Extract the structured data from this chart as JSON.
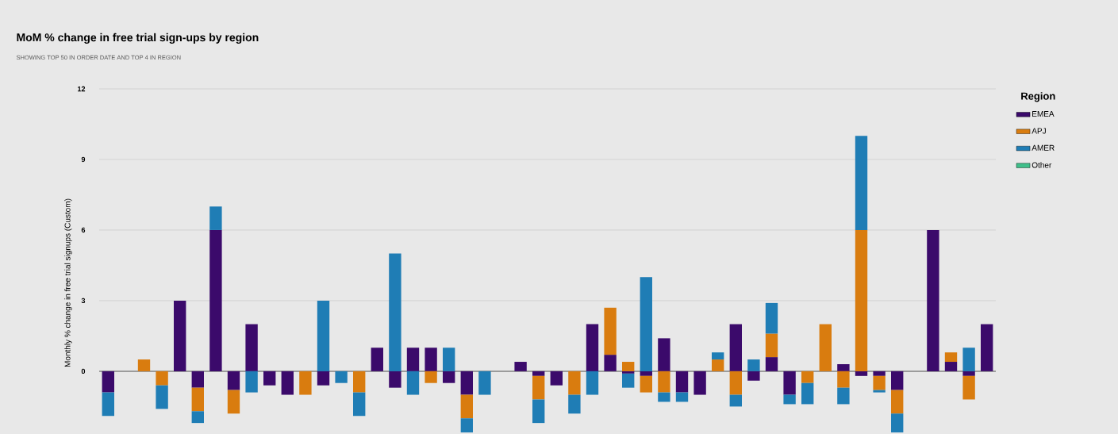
{
  "chart_data": {
    "type": "bar",
    "stacked": true,
    "title": "MoM % change in free trial sign-ups by region",
    "subtitle": "SHOWING TOP 50 IN ORDER DATE AND TOP 4 IN REGION",
    "ylabel": "Monthly % change in free trial signups (Custom)",
    "legend_title": "Region",
    "legend": "right",
    "grid": "y",
    "categories": [
      null,
      null,
      null,
      null,
      null,
      null,
      null,
      null,
      null,
      null,
      null,
      null,
      null,
      null,
      null,
      null,
      null,
      null,
      null,
      null,
      null,
      null,
      null,
      null,
      null,
      null,
      null,
      null,
      null,
      null,
      null,
      null,
      null,
      null,
      null,
      null,
      null,
      null,
      null,
      null,
      null,
      null,
      null,
      null,
      null,
      null,
      null,
      null,
      null,
      null
    ],
    "ylim": [
      -2.6,
      12
    ],
    "yticks": [
      0,
      3,
      6,
      9,
      12
    ],
    "series": [
      {
        "name": "EMEA",
        "color": "#3b0a6b",
        "values": [
          -0.9,
          null,
          null,
          null,
          3,
          -0.7,
          6,
          -0.8,
          2,
          -0.6,
          -1.0,
          null,
          -0.6,
          null,
          null,
          1,
          -0.7,
          1,
          1,
          -0.5,
          -1.0,
          null,
          null,
          0.4,
          -0.2,
          -0.6,
          null,
          2,
          0.7,
          -0.1,
          -0.2,
          1.4,
          -0.9,
          -1.0,
          null,
          2,
          -0.4,
          0.6,
          -1.0,
          null,
          null,
          0.3,
          -0.2,
          -0.2,
          -0.8,
          null,
          6,
          0.4,
          -0.2,
          2
        ]
      },
      {
        "name": "APJ",
        "color": "#d97c0f",
        "values": [
          null,
          null,
          0.5,
          -0.6,
          null,
          -1.0,
          null,
          -1.0,
          null,
          null,
          null,
          -1.0,
          null,
          null,
          -0.9,
          null,
          null,
          null,
          -0.5,
          null,
          -1.0,
          null,
          null,
          null,
          -1.0,
          null,
          -1.0,
          null,
          2.0,
          0.4,
          -0.7,
          -0.9,
          null,
          null,
          0.5,
          -1.0,
          null,
          1.0,
          null,
          -0.5,
          2,
          -0.7,
          6,
          -0.6,
          -1.0,
          null,
          null,
          0.4,
          -1.0,
          null
        ]
      },
      {
        "name": "AMER",
        "color": "#1f7db5",
        "values": [
          -1.0,
          null,
          null,
          -1.0,
          null,
          -0.5,
          1,
          null,
          -0.9,
          null,
          null,
          null,
          3,
          -0.5,
          -1.0,
          null,
          5,
          -1.0,
          null,
          1,
          -0.6,
          -1.0,
          null,
          null,
          -1.0,
          null,
          -0.8,
          -1.0,
          null,
          -0.6,
          4,
          -0.4,
          -0.4,
          null,
          0.3,
          -0.5,
          0.5,
          1.3,
          -0.4,
          -0.9,
          null,
          -0.7,
          4,
          -0.1,
          -0.8,
          null,
          null,
          null,
          1,
          null
        ]
      },
      {
        "name": "Other",
        "color": "#3fbf8a",
        "values": [
          null,
          null,
          null,
          null,
          null,
          null,
          null,
          null,
          null,
          null,
          null,
          null,
          null,
          null,
          null,
          null,
          null,
          null,
          null,
          null,
          null,
          null,
          null,
          null,
          null,
          null,
          null,
          null,
          null,
          null,
          null,
          null,
          null,
          null,
          null,
          null,
          null,
          null,
          null,
          null,
          null,
          null,
          null,
          null,
          null,
          null,
          null,
          null,
          null,
          null
        ]
      }
    ]
  }
}
